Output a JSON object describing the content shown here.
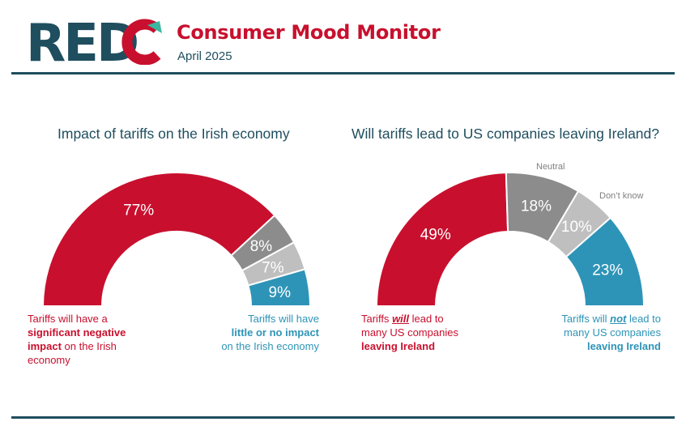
{
  "brand": {
    "logo_text": "REDC",
    "title": "Consumer Mood Monitor",
    "subtitle": "April 2025"
  },
  "colors": {
    "red": "#c8102e",
    "grey_dark": "#8c8c8c",
    "grey_light": "#bfbfbf",
    "blue": "#2e94b7",
    "teal": "#1f4e5f",
    "logo_green": "#3cb8a0"
  },
  "chart_data": [
    {
      "type": "pie",
      "style": "semi-donut",
      "title_prefix": "Impact of tariffs on the ",
      "title_bold": "Irish economy",
      "title_suffix": "",
      "slices": [
        {
          "label": "77%",
          "value": 77,
          "color": "#c8102e"
        },
        {
          "label": "8%",
          "value": 8,
          "color": "#8c8c8c"
        },
        {
          "label": "7%",
          "value": 7,
          "color": "#bfbfbf"
        },
        {
          "label": "9%",
          "value": 9,
          "color": "#2e94b7"
        }
      ],
      "notes": {
        "left_pre": "Tariffs will have a",
        "left_strong": "significant negative impact",
        "left_post": "on the Irish economy",
        "right_pre": "Tariffs will have",
        "right_strong": "little or no impact",
        "right_post": "on the Irish economy"
      }
    },
    {
      "type": "pie",
      "style": "semi-donut",
      "title_prefix": "Will tariffs lead to ",
      "title_bold": "US companies leaving Ireland",
      "title_suffix": "?",
      "slices": [
        {
          "label": "49%",
          "value": 49,
          "color": "#c8102e"
        },
        {
          "label": "18%",
          "value": 18,
          "color": "#8c8c8c",
          "category": "Neutral"
        },
        {
          "label": "10%",
          "value": 10,
          "color": "#bfbfbf",
          "category": "Don’t know"
        },
        {
          "label": "23%",
          "value": 23,
          "color": "#2e94b7"
        }
      ],
      "notes": {
        "left_pre": "Tariffs ",
        "left_ul": "will",
        "left_mid": " lead to many US companies ",
        "left_strong": "leaving Ireland",
        "right_pre": "Tariffs will ",
        "right_ul": "not",
        "right_mid": " lead to many US companies ",
        "right_strong": "leaving Ireland"
      }
    }
  ]
}
